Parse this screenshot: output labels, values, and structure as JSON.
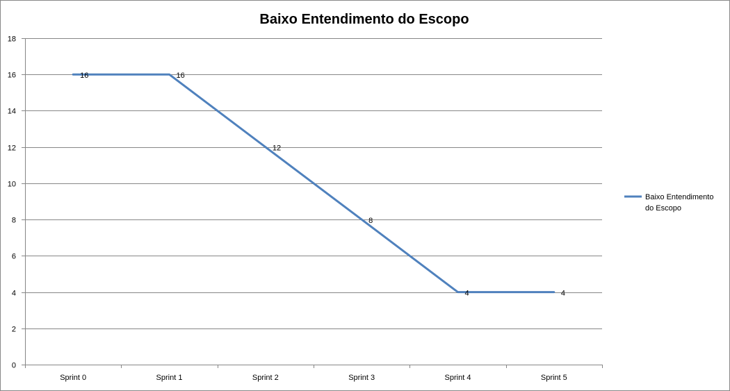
{
  "chart_data": {
    "type": "line",
    "title": "Baixo Entendimento do Escopo",
    "xlabel": "",
    "ylabel": "",
    "categories": [
      "Sprint 0",
      "Sprint 1",
      "Sprint 2",
      "Sprint 3",
      "Sprint 4",
      "Sprint 5"
    ],
    "ylim": [
      0,
      18
    ],
    "yticks": [
      0,
      2,
      4,
      6,
      8,
      10,
      12,
      14,
      16,
      18
    ],
    "grid": true,
    "legend_position": "right",
    "series": [
      {
        "name": "Baixo Entendimento do Escopo",
        "legend_lines": [
          "Baixo Entendimento",
          "do Escopo"
        ],
        "values": [
          16,
          16,
          12,
          8,
          4,
          4
        ],
        "color": "#4F81BD",
        "data_labels": [
          "16",
          "16",
          "12",
          "8",
          "4",
          "4"
        ]
      }
    ]
  }
}
